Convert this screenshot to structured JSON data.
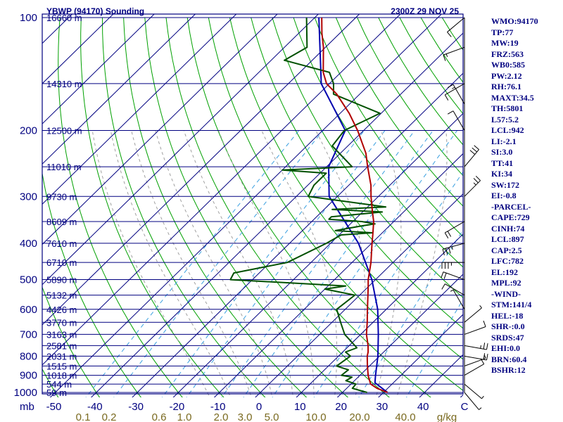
{
  "header": {
    "station": "YBWP (94170) Sounding",
    "time": "2300Z 29 NOV 25"
  },
  "indices": [
    "WMO:94170",
    "TP:77",
    "MW:19",
    "FRZ:563",
    "WB0:585",
    "PW:2.12",
    "RH:76.1",
    "MAXT:34.5",
    "TH:5801",
    "L57:5.2",
    "LCL:942",
    "LI:-2.1",
    "SI:3.0",
    "TT:41",
    "KI:34",
    "SW:172",
    "EI:-0.8",
    "-PARCEL-",
    "CAPE:729",
    "CINH:74",
    "LCL:897",
    "CAP:2.5",
    "LFC:782",
    "EL:192",
    "MPL:92",
    "-WIND-",
    "STM:141/4",
    "HEL:-18",
    "SHR-:0.0",
    "SRDS:47",
    "EHI:0.0",
    "BRN:60.4",
    "BSHR:12"
  ],
  "colors": {
    "isobar": "#000080",
    "isotherm": "#000080",
    "dry_adiabat": "#00a000",
    "moist_adiabat": "#a0a0a0",
    "mixing_ratio": "#3aa0e0",
    "temperature": "#b00000",
    "dewpoint": "#005000",
    "parcel": "#0000b0",
    "mixing_label": "#7a6a20",
    "wind": "#000000"
  },
  "chart_data": {
    "type": "skew-t",
    "title": "YBWP (94170) Sounding",
    "x_unit": "C",
    "y_unit": "mb",
    "mixing_unit": "g/kg",
    "pressure_levels": [
      {
        "p": 100,
        "label": "100",
        "height": "16660 m"
      },
      {
        "p": 150,
        "label": "",
        "height": "14310 m"
      },
      {
        "p": 200,
        "label": "200",
        "height": "12500 m"
      },
      {
        "p": 250,
        "label": "",
        "height": "11010 m"
      },
      {
        "p": 300,
        "label": "300",
        "height": "9730 m"
      },
      {
        "p": 350,
        "label": "",
        "height": "8609 m"
      },
      {
        "p": 400,
        "label": "400",
        "height": "7610 m"
      },
      {
        "p": 450,
        "label": "",
        "height": "6710 m"
      },
      {
        "p": 500,
        "label": "500",
        "height": "5890 m"
      },
      {
        "p": 550,
        "label": "",
        "height": "5132 m"
      },
      {
        "p": 600,
        "label": "600",
        "height": "4426 m"
      },
      {
        "p": 650,
        "label": "",
        "height": "3770 m"
      },
      {
        "p": 700,
        "label": "700",
        "height": "3163 m"
      },
      {
        "p": 750,
        "label": "",
        "height": "2581 m"
      },
      {
        "p": 800,
        "label": "800",
        "height": "2031 m"
      },
      {
        "p": 850,
        "label": "",
        "height": "1515 m"
      },
      {
        "p": 900,
        "label": "900",
        "height": "1018 m"
      },
      {
        "p": 950,
        "label": "",
        "height": "544 m"
      },
      {
        "p": 1000,
        "label": "1000",
        "height": "59 m"
      }
    ],
    "temp_ticks": [
      {
        "t": -50,
        "label": "-50"
      },
      {
        "t": -40,
        "label": "-40"
      },
      {
        "t": -30,
        "label": "-30"
      },
      {
        "t": -20,
        "label": "-20"
      },
      {
        "t": -10,
        "label": "-10"
      },
      {
        "t": 0,
        "label": "0"
      },
      {
        "t": 10,
        "label": "10"
      },
      {
        "t": 20,
        "label": "20"
      },
      {
        "t": 30,
        "label": "30"
      },
      {
        "t": 40,
        "label": "40"
      }
    ],
    "corner_labels": {
      "left": "mb",
      "right": "C"
    },
    "mixing_ratios": [
      {
        "w": 0.1,
        "label": "0.1"
      },
      {
        "w": 0.2,
        "label": "0.2"
      },
      {
        "w": 0.6,
        "label": "0.6"
      },
      {
        "w": 1.0,
        "label": "1.0"
      },
      {
        "w": 2.0,
        "label": "2.0"
      },
      {
        "w": 3.0,
        "label": "3.0"
      },
      {
        "w": 5.0,
        "label": "5.0"
      },
      {
        "w": 10.0,
        "label": "10.0"
      },
      {
        "w": 20.0,
        "label": "20.0"
      },
      {
        "w": 40.0,
        "label": "40.0"
      }
    ],
    "dry_adiabats": [
      -50,
      -40,
      -30,
      -20,
      -10,
      0,
      10,
      20,
      30,
      40,
      50,
      60,
      70,
      80,
      90,
      100,
      110,
      120,
      130,
      140,
      150,
      160,
      170,
      180
    ],
    "moist_adiabats": [
      -10,
      -5,
      0,
      5,
      10,
      15,
      20,
      25,
      30,
      35
    ],
    "temperature": {
      "name": "Temperature",
      "points": [
        {
          "p": 1000,
          "t": 31.0
        },
        {
          "p": 975,
          "t": 27.4
        },
        {
          "p": 950,
          "t": 24.8
        },
        {
          "p": 925,
          "t": 23.4
        },
        {
          "p": 900,
          "t": 22.0
        },
        {
          "p": 850,
          "t": 19.5
        },
        {
          "p": 800,
          "t": 17.0
        },
        {
          "p": 780,
          "t": 16.2
        },
        {
          "p": 750,
          "t": 14.6
        },
        {
          "p": 700,
          "t": 11.4
        },
        {
          "p": 650,
          "t": 8.6
        },
        {
          "p": 600,
          "t": 5.4
        },
        {
          "p": 550,
          "t": 2.0
        },
        {
          "p": 520,
          "t": -0.2
        },
        {
          "p": 500,
          "t": -1.8
        },
        {
          "p": 470,
          "t": -3.9
        },
        {
          "p": 450,
          "t": -5.4
        },
        {
          "p": 400,
          "t": -9.9
        },
        {
          "p": 380,
          "t": -11.8
        },
        {
          "p": 350,
          "t": -14.9
        },
        {
          "p": 330,
          "t": -17.6
        },
        {
          "p": 300,
          "t": -21.8
        },
        {
          "p": 280,
          "t": -24.6
        },
        {
          "p": 250,
          "t": -30.0
        },
        {
          "p": 230,
          "t": -33.8
        },
        {
          "p": 200,
          "t": -41.5
        },
        {
          "p": 180,
          "t": -47.8
        },
        {
          "p": 160,
          "t": -55.6
        },
        {
          "p": 150,
          "t": -60.7
        },
        {
          "p": 140,
          "t": -64.3
        },
        {
          "p": 120,
          "t": -70.5
        },
        {
          "p": 110,
          "t": -74.4
        },
        {
          "p": 100,
          "t": -78.3
        }
      ]
    },
    "dewpoint": {
      "name": "Dewpoint",
      "points": [
        {
          "p": 1000,
          "t": 26.0
        },
        {
          "p": 975,
          "t": 21.4
        },
        {
          "p": 950,
          "t": 21.2
        },
        {
          "p": 930,
          "t": 17.9
        },
        {
          "p": 910,
          "t": 18.5
        },
        {
          "p": 900,
          "t": 15.5
        },
        {
          "p": 870,
          "t": 15.8
        },
        {
          "p": 850,
          "t": 12.0
        },
        {
          "p": 800,
          "t": 12.9
        },
        {
          "p": 780,
          "t": 10.7
        },
        {
          "p": 760,
          "t": 12.4
        },
        {
          "p": 700,
          "t": 6.1
        },
        {
          "p": 650,
          "t": 2.1
        },
        {
          "p": 600,
          "t": -2.1
        },
        {
          "p": 550,
          "t": -1.2
        },
        {
          "p": 530,
          "t": -10.0
        },
        {
          "p": 520,
          "t": -5.7
        },
        {
          "p": 500,
          "t": -35.4
        },
        {
          "p": 480,
          "t": -36.2
        },
        {
          "p": 450,
          "t": -25.8
        },
        {
          "p": 400,
          "t": -21.0
        },
        {
          "p": 380,
          "t": -19.5
        },
        {
          "p": 375,
          "t": -12.5
        },
        {
          "p": 370,
          "t": -22.0
        },
        {
          "p": 360,
          "t": -17.0
        },
        {
          "p": 355,
          "t": -14.0
        },
        {
          "p": 350,
          "t": -17.8
        },
        {
          "p": 345,
          "t": -26.4
        },
        {
          "p": 340,
          "t": -26.4
        },
        {
          "p": 330,
          "t": -15.2
        },
        {
          "p": 325,
          "t": -28.0
        },
        {
          "p": 320,
          "t": -15.6
        },
        {
          "p": 300,
          "t": -37.1
        },
        {
          "p": 280,
          "t": -38.5
        },
        {
          "p": 260,
          "t": -38.5
        },
        {
          "p": 255,
          "t": -50.0
        },
        {
          "p": 250,
          "t": -33.8
        },
        {
          "p": 220,
          "t": -43.8
        },
        {
          "p": 200,
          "t": -44.7
        },
        {
          "p": 180,
          "t": -40.3
        },
        {
          "p": 160,
          "t": -56.4
        },
        {
          "p": 150,
          "t": -59.0
        },
        {
          "p": 140,
          "t": -62.8
        },
        {
          "p": 130,
          "t": -76.8
        },
        {
          "p": 120,
          "t": -74.5
        },
        {
          "p": 100,
          "t": -82.0
        }
      ]
    },
    "parcel": {
      "name": "Parcel",
      "points": [
        {
          "p": 1000,
          "t": 31.0
        },
        {
          "p": 942,
          "t": 25.5
        },
        {
          "p": 900,
          "t": 23.8
        },
        {
          "p": 800,
          "t": 19.6
        },
        {
          "p": 700,
          "t": 14.3
        },
        {
          "p": 600,
          "t": 7.9
        },
        {
          "p": 500,
          "t": -0.9
        },
        {
          "p": 400,
          "t": -13.2
        },
        {
          "p": 300,
          "t": -32.0
        },
        {
          "p": 250,
          "t": -39.5
        },
        {
          "p": 200,
          "t": -44.5
        },
        {
          "p": 150,
          "t": -62.0
        },
        {
          "p": 100,
          "t": -79.0
        }
      ]
    },
    "wind_barbs": [
      {
        "p": 1000,
        "dir": 140,
        "kt": 5
      },
      {
        "p": 950,
        "dir": 130,
        "kt": 5
      },
      {
        "p": 900,
        "dir": 60,
        "kt": 10
      },
      {
        "p": 850,
        "dir": 70,
        "kt": 5
      },
      {
        "p": 800,
        "dir": 100,
        "kt": 20
      },
      {
        "p": 750,
        "dir": 100,
        "kt": 25
      },
      {
        "p": 700,
        "dir": 70,
        "kt": 10
      },
      {
        "p": 650,
        "dir": 50,
        "kt": 5
      },
      {
        "p": 600,
        "dir": 330,
        "kt": 5
      },
      {
        "p": 550,
        "dir": 300,
        "kt": 10
      },
      {
        "p": 500,
        "dir": 290,
        "kt": 20
      },
      {
        "p": 450,
        "dir": 270,
        "kt": 35
      },
      {
        "p": 400,
        "dir": 255,
        "kt": 35
      },
      {
        "p": 350,
        "dir": 240,
        "kt": 20
      },
      {
        "p": 300,
        "dir": 45,
        "kt": 25
      },
      {
        "p": 250,
        "dir": 40,
        "kt": 30
      },
      {
        "p": 200,
        "dir": 330,
        "kt": 10
      },
      {
        "p": 170,
        "dir": 330,
        "kt": 15
      },
      {
        "p": 150,
        "dir": 240,
        "kt": 10
      },
      {
        "p": 120,
        "dir": 250,
        "kt": 15
      },
      {
        "p": 100,
        "dir": 230,
        "kt": 10
      }
    ]
  }
}
